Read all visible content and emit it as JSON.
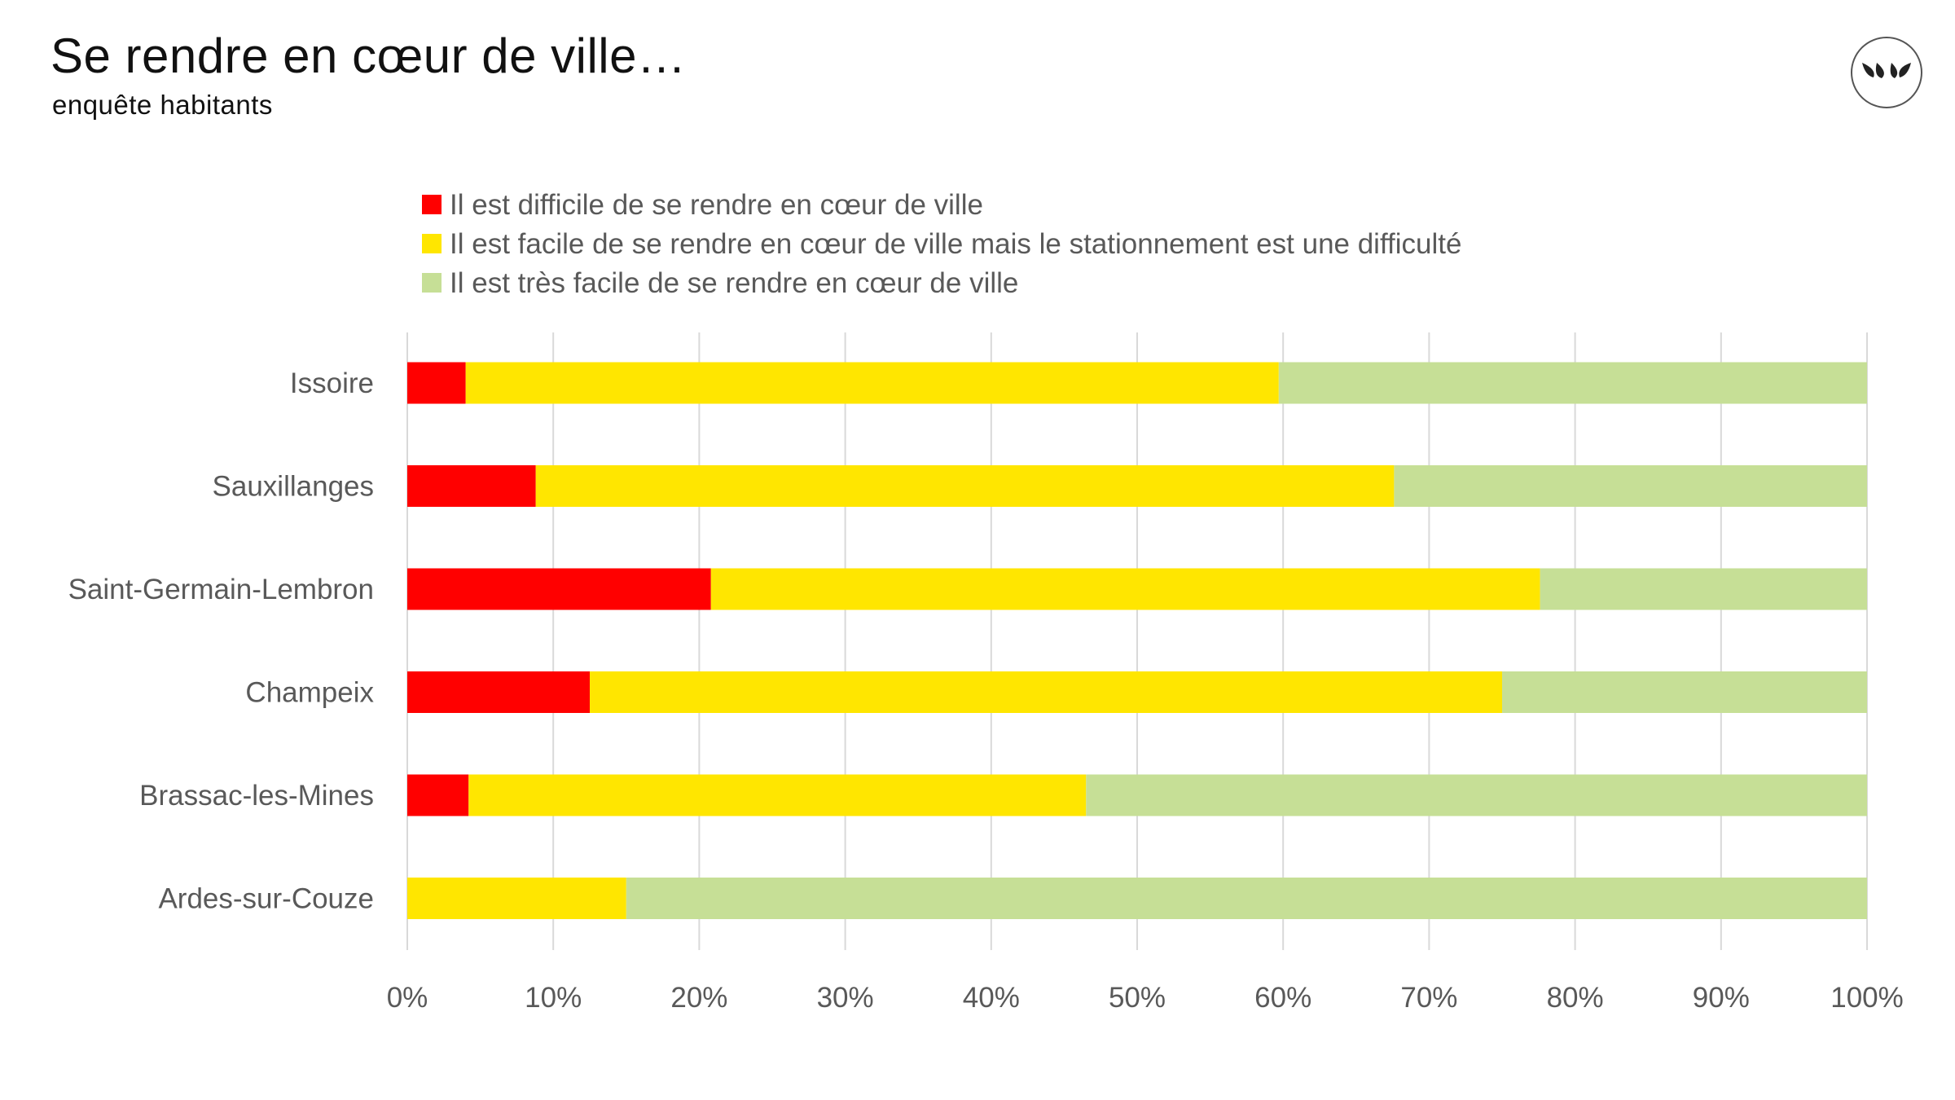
{
  "header": {
    "title": "Se rendre en cœur de ville…",
    "subtitle": "enquête habitants",
    "logo_icon": "leaves-logo-icon"
  },
  "chart_data": {
    "type": "bar",
    "orientation": "horizontal",
    "stacked": "percent",
    "categories": [
      "Issoire",
      "Sauxillanges",
      "Saint-Germain-Lembron",
      "Champeix",
      "Brassac-les-Mines",
      "Ardes-sur-Couze"
    ],
    "series": [
      {
        "name": "Il est difficile de se rendre en cœur de ville",
        "color": "#ff0000",
        "values": [
          4.0,
          8.8,
          20.8,
          12.5,
          4.2,
          0.0
        ]
      },
      {
        "name": "Il est facile de se rendre en cœur de ville mais le stationnement est une difficulté",
        "color": "#ffe600",
        "values": [
          55.7,
          58.8,
          56.8,
          62.5,
          42.3,
          15.0
        ]
      },
      {
        "name": "Il est très facile de se rendre en cœur de ville",
        "color": "#c6df96",
        "values": [
          40.3,
          32.4,
          22.4,
          25.0,
          53.5,
          85.0
        ]
      }
    ],
    "xlim": [
      0,
      100
    ],
    "x_ticks": [
      "0%",
      "10%",
      "20%",
      "30%",
      "40%",
      "50%",
      "60%",
      "70%",
      "80%",
      "90%",
      "100%"
    ],
    "grid": "vertical",
    "legend": "top"
  }
}
